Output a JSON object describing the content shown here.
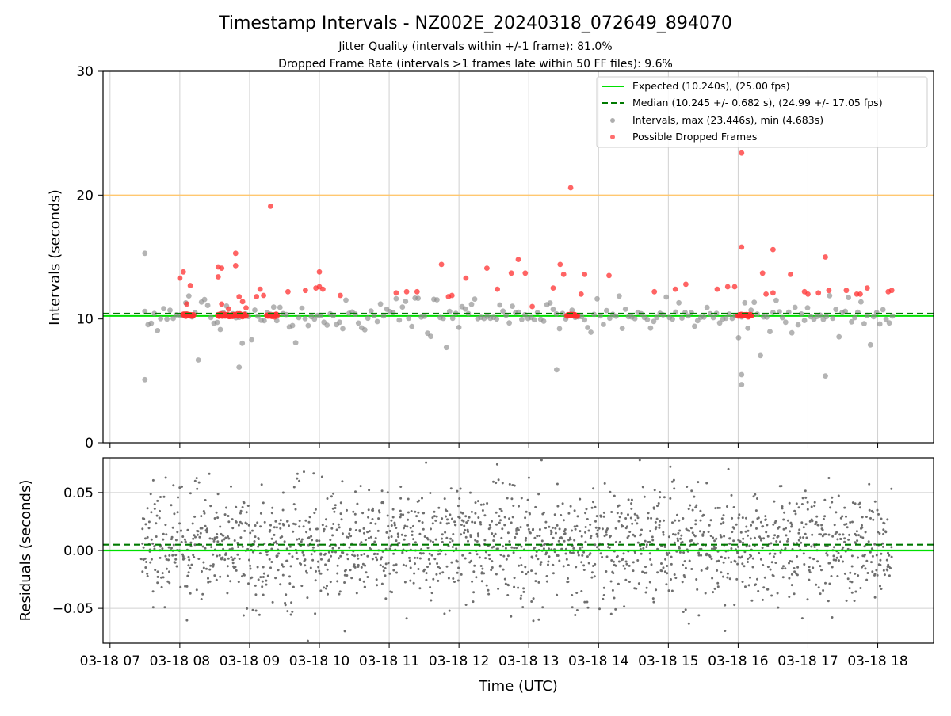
{
  "chart_data": [
    {
      "type": "scatter",
      "title": "Timestamp Intervals - NZ002E_20240318_072649_894070",
      "subtitle_lines": [
        "Jitter Quality (intervals within +/-1 frame): 81.0%",
        "Dropped Frame Rate (intervals >1 frames late within 50 FF files): 9.6%"
      ],
      "ylabel": "Intervals (seconds)",
      "ylim": [
        0,
        30
      ],
      "yticks": [
        0,
        10,
        20,
        30
      ],
      "x_range_hours": [
        6.9,
        18.8
      ],
      "grid": true,
      "legend_placement": "top-right",
      "reference_lines": {
        "expected": 10.24,
        "median": 10.245,
        "threshold": 20.0
      },
      "colors": {
        "expected": "#00e000",
        "median": "#007a00",
        "threshold": "#ffc870",
        "intervals": "#8c8c8c",
        "dropped": "#ff3030"
      },
      "legend": [
        {
          "key": "expected",
          "label": "Expected (10.240s), (25.00 fps)"
        },
        {
          "key": "median",
          "label": "Median (10.245 +/- 0.682 s), (24.99 +/- 17.05 fps)"
        },
        {
          "key": "intervals",
          "label": "Intervals, max (23.446s), min (4.683s)"
        },
        {
          "key": "dropped",
          "label": "Possible Dropped Frames"
        }
      ],
      "series": [
        {
          "name": "Possible Dropped Frames",
          "points": [
            [
              8.0,
              13.3
            ],
            [
              8.05,
              13.8
            ],
            [
              8.1,
              11.2
            ],
            [
              8.15,
              12.7
            ],
            [
              8.55,
              14.2
            ],
            [
              8.55,
              13.4
            ],
            [
              8.6,
              14.1
            ],
            [
              8.6,
              11.2
            ],
            [
              8.7,
              10.8
            ],
            [
              8.8,
              14.3
            ],
            [
              8.8,
              15.3
            ],
            [
              8.85,
              11.8
            ],
            [
              8.9,
              11.4
            ],
            [
              8.95,
              10.9
            ],
            [
              9.1,
              11.8
            ],
            [
              9.15,
              12.4
            ],
            [
              9.2,
              11.9
            ],
            [
              9.3,
              19.1
            ],
            [
              9.55,
              12.2
            ],
            [
              9.8,
              12.3
            ],
            [
              9.95,
              12.5
            ],
            [
              10.0,
              12.6
            ],
            [
              10.0,
              13.8
            ],
            [
              10.05,
              12.4
            ],
            [
              10.3,
              11.9
            ],
            [
              11.1,
              12.1
            ],
            [
              11.25,
              12.2
            ],
            [
              11.4,
              12.2
            ],
            [
              11.75,
              14.4
            ],
            [
              11.85,
              11.8
            ],
            [
              11.9,
              11.9
            ],
            [
              12.1,
              13.3
            ],
            [
              12.4,
              14.1
            ],
            [
              12.55,
              12.4
            ],
            [
              12.75,
              13.7
            ],
            [
              12.85,
              14.8
            ],
            [
              12.95,
              13.7
            ],
            [
              13.05,
              11.0
            ],
            [
              13.35,
              12.5
            ],
            [
              13.45,
              14.4
            ],
            [
              13.5,
              13.6
            ],
            [
              13.6,
              20.6
            ],
            [
              13.75,
              12.0
            ],
            [
              13.8,
              13.6
            ],
            [
              14.15,
              13.5
            ],
            [
              14.8,
              12.2
            ],
            [
              15.1,
              12.4
            ],
            [
              15.25,
              12.8
            ],
            [
              15.7,
              12.4
            ],
            [
              15.85,
              12.6
            ],
            [
              15.95,
              12.6
            ],
            [
              16.05,
              23.4
            ],
            [
              16.05,
              15.8
            ],
            [
              16.35,
              13.7
            ],
            [
              16.4,
              12.0
            ],
            [
              16.5,
              15.6
            ],
            [
              16.5,
              12.1
            ],
            [
              16.75,
              13.6
            ],
            [
              16.95,
              12.2
            ],
            [
              17.0,
              12.0
            ],
            [
              17.15,
              12.1
            ],
            [
              17.25,
              15.0
            ],
            [
              17.3,
              12.3
            ],
            [
              17.55,
              12.3
            ],
            [
              17.7,
              12.0
            ],
            [
              17.75,
              12.0
            ],
            [
              17.85,
              12.5
            ],
            [
              18.15,
              12.2
            ],
            [
              18.2,
              12.3
            ]
          ],
          "clusters": [
            [
              8.05,
              8.2
            ],
            [
              8.55,
              8.95
            ],
            [
              9.25,
              9.4
            ],
            [
              13.55,
              13.7
            ],
            [
              16.0,
              16.2
            ]
          ]
        }
      ]
    },
    {
      "type": "scatter",
      "xlabel": "Time (UTC)",
      "ylabel": "Residuals (seconds)",
      "ylim": [
        -0.08,
        0.08
      ],
      "yticks": [
        -0.05,
        0.0,
        0.05
      ],
      "ytick_labels": [
        "−0.05",
        "0.00",
        "0.05"
      ],
      "x_range_hours": [
        6.9,
        18.8
      ],
      "xticks_hours": [
        7,
        8,
        9,
        10,
        11,
        12,
        13,
        14,
        15,
        16,
        17,
        18
      ],
      "xtick_labels": [
        "03-18 07",
        "03-18 08",
        "03-18 09",
        "03-18 10",
        "03-18 11",
        "03-18 12",
        "03-18 13",
        "03-18 14",
        "03-18 15",
        "03-18 16",
        "03-18 17",
        "03-18 18"
      ],
      "grid": true,
      "reference_lines": {
        "expected": 0.0,
        "median": 0.005
      },
      "colors": {
        "expected": "#00e000",
        "median": "#007a00",
        "residuals": "#6e6e6e"
      }
    }
  ]
}
